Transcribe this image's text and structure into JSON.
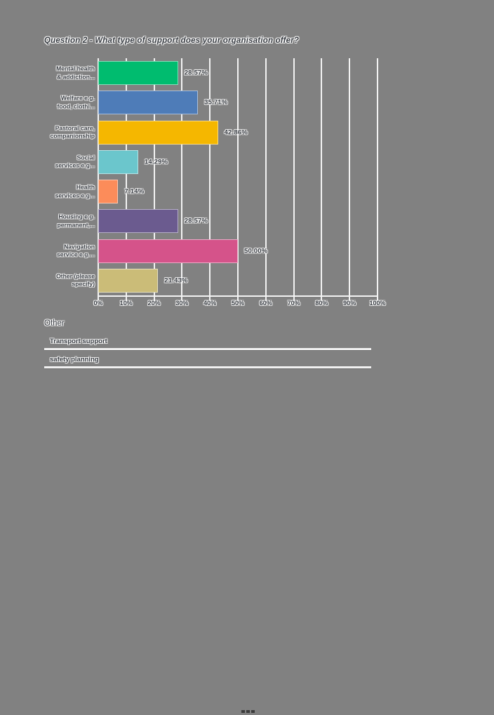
{
  "page": {
    "background": "#818181"
  },
  "chart_data": {
    "type": "bar",
    "orientation": "horizontal",
    "title": "Question 2 - What type of support does your organisation offer?",
    "categories": [
      "Mental health\n& addiction...",
      "Welfare e.g.\nfood, clothi...",
      "Pastoral care,\ncompanionship",
      "Social\nservices e.g...",
      "Health\nservices e.g...",
      "Housing e.g.\npermanent,...",
      "Navigation\nservice e.g....",
      "Other (please\nspecify)"
    ],
    "values": [
      28.57,
      35.71,
      42.86,
      14.29,
      7.14,
      28.57,
      50.0,
      21.43
    ],
    "value_labels": [
      "28.57%",
      "35.71%",
      "42.86%",
      "14.29%",
      "7.14%",
      "28.57%",
      "50.00%",
      "21.43%"
    ],
    "bar_colors": [
      "#00bc6f",
      "#4e7cb8",
      "#f5b700",
      "#6bc6cc",
      "#fc8c5a",
      "#6b5b8f",
      "#d5538a",
      "#cbbc78"
    ],
    "xticks": [
      "0%",
      "10%",
      "20%",
      "30%",
      "40%",
      "50%",
      "60%",
      "70%",
      "80%",
      "90%",
      "100%"
    ],
    "xlim": [
      0,
      100
    ],
    "grid": true,
    "gridline_color": "#f3f3f3",
    "legend": "none"
  },
  "other": {
    "title": "Other",
    "responses": [
      "Transport support",
      "safety planning"
    ]
  }
}
